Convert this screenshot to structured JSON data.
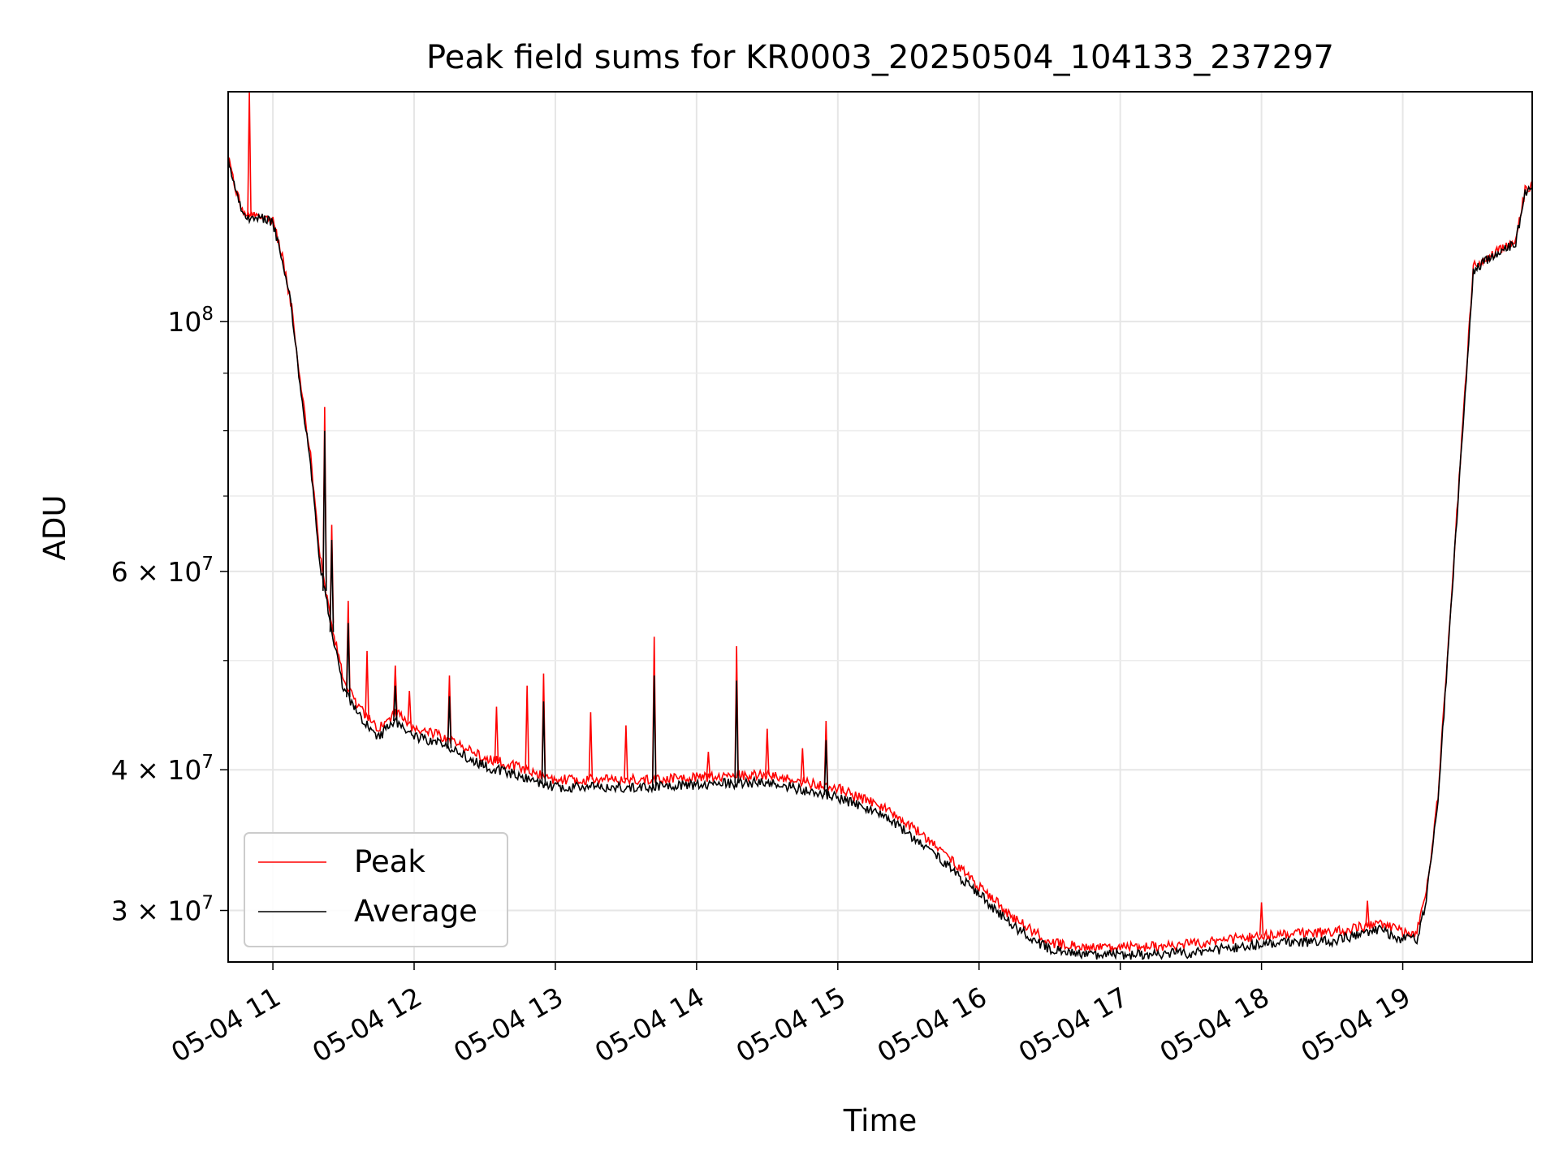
{
  "chart_data": {
    "type": "line",
    "title": "Peak field sums for KR0003_20250504_104133_237297",
    "xlabel": "Time",
    "ylabel": "ADU",
    "yscale": "log",
    "xlim": [
      "2025-05-04 10:41",
      "2025-05-04 19:55"
    ],
    "ylim": [
      27000000,
      160000000
    ],
    "grid": true,
    "legend_position": "lower-left",
    "x_ticks": [
      {
        "time": "2025-05-04 11:00",
        "label": "05-04 11"
      },
      {
        "time": "2025-05-04 12:00",
        "label": "05-04 12"
      },
      {
        "time": "2025-05-04 13:00",
        "label": "05-04 13"
      },
      {
        "time": "2025-05-04 14:00",
        "label": "05-04 14"
      },
      {
        "time": "2025-05-04 15:00",
        "label": "05-04 15"
      },
      {
        "time": "2025-05-04 16:00",
        "label": "05-04 16"
      },
      {
        "time": "2025-05-04 17:00",
        "label": "05-04 17"
      },
      {
        "time": "2025-05-04 18:00",
        "label": "05-04 18"
      },
      {
        "time": "2025-05-04 19:00",
        "label": "05-04 19"
      }
    ],
    "y_major_ticks": [
      {
        "value": 100000000,
        "base": "10",
        "exp": "8"
      },
      {
        "value": 60000000,
        "base": "6 × 10",
        "exp": "7"
      },
      {
        "value": 40000000,
        "base": "4 × 10",
        "exp": "7"
      },
      {
        "value": 30000000,
        "base": "3 × 10",
        "exp": "7"
      }
    ],
    "y_minor_ticks": [
      90000000,
      80000000,
      70000000,
      50000000
    ],
    "series": [
      {
        "name": "Peak",
        "color": "#ff0000",
        "x": [
          "2025-05-04 10:41",
          "2025-05-04 10:44",
          "2025-05-04 10:47",
          "2025-05-04 10:50",
          "2025-05-04 10:55",
          "2025-05-04 11:00",
          "2025-05-04 11:04",
          "2025-05-04 11:08",
          "2025-05-04 11:12",
          "2025-05-04 11:16",
          "2025-05-04 11:20",
          "2025-05-04 11:25",
          "2025-05-04 11:30",
          "2025-05-04 11:35",
          "2025-05-04 11:40",
          "2025-05-04 11:45",
          "2025-05-04 11:52",
          "2025-05-04 12:00",
          "2025-05-04 12:10",
          "2025-05-04 12:20",
          "2025-05-04 12:30",
          "2025-05-04 12:45",
          "2025-05-04 13:00",
          "2025-05-04 13:30",
          "2025-05-04 14:00",
          "2025-05-04 14:30",
          "2025-05-04 15:00",
          "2025-05-04 15:20",
          "2025-05-04 15:40",
          "2025-05-04 16:00",
          "2025-05-04 16:15",
          "2025-05-04 16:30",
          "2025-05-04 16:45",
          "2025-05-04 17:00",
          "2025-05-04 17:30",
          "2025-05-04 18:00",
          "2025-05-04 18:30",
          "2025-05-04 18:50",
          "2025-05-04 19:00",
          "2025-05-04 19:06",
          "2025-05-04 19:10",
          "2025-05-04 19:15",
          "2025-05-04 19:20",
          "2025-05-04 19:25",
          "2025-05-04 19:30",
          "2025-05-04 19:36",
          "2025-05-04 19:42",
          "2025-05-04 19:48",
          "2025-05-04 19:52",
          "2025-05-04 19:55"
        ],
        "y": [
          140000000,
          132000000,
          125000000,
          124000000,
          124000000,
          123000000,
          114000000,
          103000000,
          87000000,
          76000000,
          62000000,
          54000000,
          48000000,
          46000000,
          44500000,
          43500000,
          45000000,
          43500000,
          43000000,
          42000000,
          41000000,
          40200000,
          39200000,
          39200000,
          39400000,
          39600000,
          38500000,
          37000000,
          34500000,
          31500000,
          29500000,
          28100000,
          27800000,
          27800000,
          28000000,
          28500000,
          28700000,
          29200000,
          28700000,
          28700000,
          31000000,
          38000000,
          54000000,
          78000000,
          112000000,
          114000000,
          116000000,
          118000000,
          131000000,
          132000000
        ],
        "spikes": [
          {
            "x": "2025-05-04 10:50",
            "y": 160000000
          },
          {
            "x": "2025-05-04 11:22",
            "y": 84000000
          },
          {
            "x": "2025-05-04 11:25",
            "y": 66000000
          },
          {
            "x": "2025-05-04 11:32",
            "y": 56500000
          },
          {
            "x": "2025-05-04 11:40",
            "y": 51000000
          },
          {
            "x": "2025-05-04 11:52",
            "y": 49500000
          },
          {
            "x": "2025-05-04 11:58",
            "y": 47000000
          },
          {
            "x": "2025-05-04 12:15",
            "y": 48500000
          },
          {
            "x": "2025-05-04 12:35",
            "y": 45500000
          },
          {
            "x": "2025-05-04 12:48",
            "y": 47500000
          },
          {
            "x": "2025-05-04 12:55",
            "y": 48700000
          },
          {
            "x": "2025-05-04 13:15",
            "y": 45000000
          },
          {
            "x": "2025-05-04 13:30",
            "y": 43800000
          },
          {
            "x": "2025-05-04 13:42",
            "y": 52500000
          },
          {
            "x": "2025-05-04 14:05",
            "y": 41500000
          },
          {
            "x": "2025-05-04 14:17",
            "y": 51500000
          },
          {
            "x": "2025-05-04 14:30",
            "y": 43500000
          },
          {
            "x": "2025-05-04 14:45",
            "y": 41800000
          },
          {
            "x": "2025-05-04 14:55",
            "y": 44200000
          },
          {
            "x": "2025-05-04 18:00",
            "y": 30500000
          },
          {
            "x": "2025-05-04 18:45",
            "y": 30600000
          }
        ]
      },
      {
        "name": "Average",
        "color": "#000000",
        "x": [
          "2025-05-04 10:41",
          "2025-05-04 10:44",
          "2025-05-04 10:47",
          "2025-05-04 10:50",
          "2025-05-04 10:55",
          "2025-05-04 11:00",
          "2025-05-04 11:04",
          "2025-05-04 11:08",
          "2025-05-04 11:12",
          "2025-05-04 11:16",
          "2025-05-04 11:20",
          "2025-05-04 11:25",
          "2025-05-04 11:30",
          "2025-05-04 11:35",
          "2025-05-04 11:40",
          "2025-05-04 11:45",
          "2025-05-04 11:52",
          "2025-05-04 12:00",
          "2025-05-04 12:10",
          "2025-05-04 12:20",
          "2025-05-04 12:30",
          "2025-05-04 12:45",
          "2025-05-04 13:00",
          "2025-05-04 13:30",
          "2025-05-04 14:00",
          "2025-05-04 14:30",
          "2025-05-04 15:00",
          "2025-05-04 15:20",
          "2025-05-04 15:40",
          "2025-05-04 16:00",
          "2025-05-04 16:15",
          "2025-05-04 16:30",
          "2025-05-04 16:45",
          "2025-05-04 17:00",
          "2025-05-04 17:30",
          "2025-05-04 18:00",
          "2025-05-04 18:30",
          "2025-05-04 18:50",
          "2025-05-04 19:00",
          "2025-05-04 19:06",
          "2025-05-04 19:10",
          "2025-05-04 19:15",
          "2025-05-04 19:20",
          "2025-05-04 19:25",
          "2025-05-04 19:30",
          "2025-05-04 19:36",
          "2025-05-04 19:42",
          "2025-05-04 19:48",
          "2025-05-04 19:52",
          "2025-05-04 19:55"
        ],
        "y": [
          139000000,
          131000000,
          124500000,
          123500000,
          123500000,
          122500000,
          113500000,
          102500000,
          86000000,
          75000000,
          61000000,
          53000000,
          47200000,
          45200000,
          43800000,
          42800000,
          44200000,
          42800000,
          42300000,
          41300000,
          40300000,
          39500000,
          38600000,
          38600000,
          38800000,
          39000000,
          37800000,
          36400000,
          33800000,
          31000000,
          29000000,
          27700000,
          27400000,
          27400000,
          27500000,
          28000000,
          28200000,
          28800000,
          28300000,
          28300000,
          30600000,
          37500000,
          53500000,
          77500000,
          111000000,
          113500000,
          115500000,
          117500000,
          130500000,
          131500000
        ],
        "spikes": [
          {
            "x": "2025-05-04 11:22",
            "y": 80000000
          },
          {
            "x": "2025-05-04 11:25",
            "y": 64000000
          },
          {
            "x": "2025-05-04 11:32",
            "y": 54000000
          },
          {
            "x": "2025-05-04 11:52",
            "y": 47500000
          },
          {
            "x": "2025-05-04 12:15",
            "y": 46500000
          },
          {
            "x": "2025-05-04 12:55",
            "y": 46000000
          },
          {
            "x": "2025-05-04 13:42",
            "y": 48500000
          },
          {
            "x": "2025-05-04 14:17",
            "y": 48000000
          },
          {
            "x": "2025-05-04 14:55",
            "y": 42500000
          }
        ]
      }
    ]
  }
}
